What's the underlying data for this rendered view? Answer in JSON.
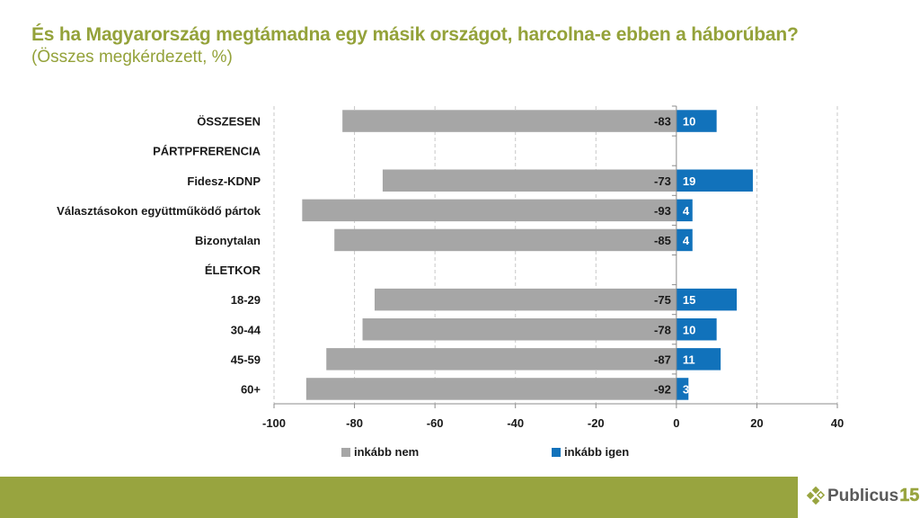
{
  "header": {
    "title": "És ha Magyarország megtámadna egy másik országot, harcolna-e ebben a háborúban?",
    "subtitle": "(Összes megkérdezett, %)"
  },
  "colors": {
    "title": "#94a23a",
    "neg": "#a6a6a6",
    "pos": "#1172bb",
    "footer": "#98a43f"
  },
  "chart_data": {
    "type": "bar",
    "orientation": "horizontal",
    "stacked": "diverging",
    "title": "És ha Magyarország megtámadna egy másik országot, harcolna-e ebben a háborúban?",
    "subtitle": "(Összes megkérdezett, %)",
    "xlabel": "",
    "ylabel": "",
    "xlim": [
      -100,
      40
    ],
    "xticks": [
      -100,
      -80,
      -60,
      -40,
      -20,
      0,
      20,
      40
    ],
    "grid": "vertical-dashed",
    "legend_position": "bottom",
    "categories": [
      "ÖSSZESEN",
      "PÁRTPFRERENCIA",
      "Fidesz-KDNP",
      "Választásokon együttműködő pártok",
      "Bizonytalan",
      "ÉLETKOR",
      "18-29",
      "30-44",
      "45-59",
      "60+"
    ],
    "series": [
      {
        "name": "inkább nem",
        "color": "#a6a6a6",
        "values": [
          -83,
          null,
          -73,
          -93,
          -85,
          null,
          -75,
          -78,
          -87,
          -92
        ]
      },
      {
        "name": "inkább igen",
        "color": "#1172bb",
        "values": [
          10,
          null,
          19,
          4,
          4,
          null,
          15,
          10,
          11,
          3
        ]
      }
    ]
  },
  "legend": {
    "items": [
      {
        "label": "inkább nem",
        "color": "#a6a6a6"
      },
      {
        "label": "inkább igen",
        "color": "#1172bb"
      }
    ]
  },
  "footer": {
    "logo_text": "Publicus",
    "logo_number": "15"
  }
}
